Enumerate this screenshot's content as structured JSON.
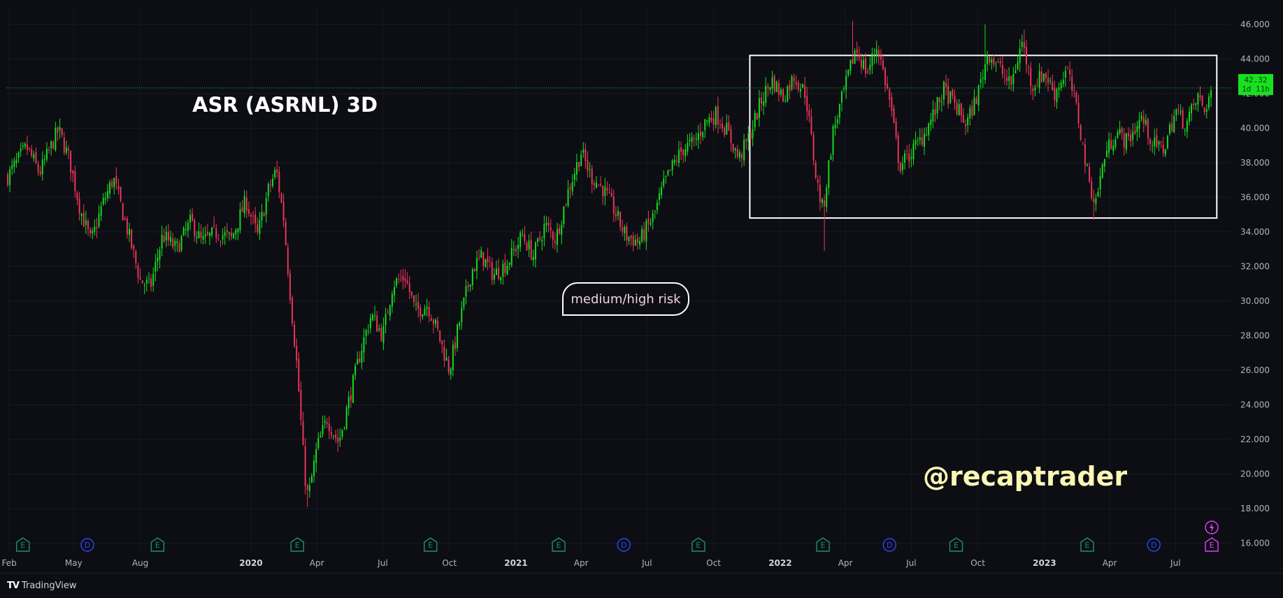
{
  "title": "ASR (ASRNL) 3D",
  "annotations": {
    "risk_label": "medium/high risk",
    "watermark": "@recaptrader"
  },
  "price_badge": {
    "price": "42.32",
    "countdown": "1d 11h"
  },
  "footer": {
    "brand": "TradingView"
  },
  "colors": {
    "up": "#16e11f",
    "down": "#f23659",
    "background": "#0c0e14",
    "box": "#ffffff",
    "price_line": "#1fc43a"
  },
  "chart_data": {
    "type": "candlestick",
    "y_axis": {
      "range": [
        15.5,
        47.0
      ],
      "ticks": [
        "16.000",
        "18.000",
        "20.000",
        "22.000",
        "24.000",
        "26.000",
        "28.000",
        "30.000",
        "32.000",
        "34.000",
        "36.000",
        "38.000",
        "40.000",
        "42.000",
        "44.000",
        "46.000"
      ],
      "position": "right"
    },
    "x_axis": {
      "range": [
        "2019-01-29",
        "2023-09-15"
      ],
      "ticks": [
        {
          "label": "Feb",
          "date": "2019-02-01",
          "year": false
        },
        {
          "label": "May",
          "date": "2019-05-01",
          "year": false
        },
        {
          "label": "Aug",
          "date": "2019-08-01",
          "year": false
        },
        {
          "label": "2020",
          "date": "2020-01-01",
          "year": true
        },
        {
          "label": "Apr",
          "date": "2020-04-01",
          "year": false
        },
        {
          "label": "Jul",
          "date": "2020-07-01",
          "year": false
        },
        {
          "label": "Oct",
          "date": "2020-10-01",
          "year": false
        },
        {
          "label": "2021",
          "date": "2021-01-01",
          "year": true
        },
        {
          "label": "Apr",
          "date": "2021-04-01",
          "year": false
        },
        {
          "label": "Jul",
          "date": "2021-07-01",
          "year": false
        },
        {
          "label": "Oct",
          "date": "2021-10-01",
          "year": false
        },
        {
          "label": "2022",
          "date": "2022-01-01",
          "year": true
        },
        {
          "label": "Apr",
          "date": "2022-04-01",
          "year": false
        },
        {
          "label": "Jul",
          "date": "2022-07-01",
          "year": false
        },
        {
          "label": "Oct",
          "date": "2022-10-01",
          "year": false
        },
        {
          "label": "2023",
          "date": "2023-01-01",
          "year": true
        },
        {
          "label": "Apr",
          "date": "2023-04-01",
          "year": false
        },
        {
          "label": "Jul",
          "date": "2023-07-01",
          "year": false
        }
      ]
    },
    "grid": true,
    "last_price": 42.32,
    "range_box": {
      "date_start": "2021-11-20",
      "date_end": "2023-08-27",
      "low": 34.8,
      "high": 44.2
    },
    "price_path": [
      [
        "2019-01-30",
        37.2
      ],
      [
        "2019-02-25",
        38.9
      ],
      [
        "2019-03-15",
        37.4
      ],
      [
        "2019-04-10",
        39.9
      ],
      [
        "2019-04-25",
        38.2
      ],
      [
        "2019-05-10",
        35.3
      ],
      [
        "2019-05-25",
        33.4
      ],
      [
        "2019-06-10",
        35.6
      ],
      [
        "2019-06-25",
        37.1
      ],
      [
        "2019-07-15",
        34.0
      ],
      [
        "2019-08-01",
        31.2
      ],
      [
        "2019-08-15",
        30.8
      ],
      [
        "2019-09-01",
        33.8
      ],
      [
        "2019-09-20",
        33.0
      ],
      [
        "2019-10-10",
        34.6
      ],
      [
        "2019-10-25",
        33.4
      ],
      [
        "2019-11-15",
        34.0
      ],
      [
        "2019-12-05",
        33.6
      ],
      [
        "2019-12-25",
        35.8
      ],
      [
        "2020-01-10",
        33.8
      ],
      [
        "2020-01-25",
        36.4
      ],
      [
        "2020-02-05",
        37.6
      ],
      [
        "2020-02-15",
        34.8
      ],
      [
        "2020-02-25",
        30.0
      ],
      [
        "2020-03-05",
        26.0
      ],
      [
        "2020-03-15",
        20.0
      ],
      [
        "2020-03-20",
        18.6
      ],
      [
        "2020-04-01",
        21.5
      ],
      [
        "2020-04-15",
        23.2
      ],
      [
        "2020-05-01",
        21.8
      ],
      [
        "2020-05-15",
        24.2
      ],
      [
        "2020-06-01",
        27.2
      ],
      [
        "2020-06-15",
        29.2
      ],
      [
        "2020-07-01",
        28.0
      ],
      [
        "2020-07-15",
        31.0
      ],
      [
        "2020-08-01",
        31.4
      ],
      [
        "2020-08-15",
        29.4
      ],
      [
        "2020-09-01",
        29.8
      ],
      [
        "2020-09-15",
        28.2
      ],
      [
        "2020-10-01",
        26.0
      ],
      [
        "2020-10-15",
        28.8
      ],
      [
        "2020-11-01",
        31.8
      ],
      [
        "2020-11-15",
        32.6
      ],
      [
        "2020-12-01",
        31.5
      ],
      [
        "2020-12-20",
        32.2
      ],
      [
        "2021-01-10",
        33.8
      ],
      [
        "2021-01-25",
        32.6
      ],
      [
        "2021-02-10",
        34.4
      ],
      [
        "2021-02-25",
        33.6
      ],
      [
        "2021-03-15",
        36.5
      ],
      [
        "2021-04-01",
        38.6
      ],
      [
        "2021-04-15",
        37.2
      ],
      [
        "2021-05-01",
        36.5
      ],
      [
        "2021-05-15",
        35.4
      ],
      [
        "2021-06-01",
        33.8
      ],
      [
        "2021-06-20",
        33.4
      ],
      [
        "2021-07-10",
        34.9
      ],
      [
        "2021-07-25",
        36.8
      ],
      [
        "2021-08-10",
        38.2
      ],
      [
        "2021-08-20",
        38.8
      ],
      [
        "2021-09-05",
        39.2
      ],
      [
        "2021-09-20",
        40.4
      ],
      [
        "2021-10-05",
        40.8
      ],
      [
        "2021-10-20",
        39.8
      ],
      [
        "2021-11-05",
        38.2
      ],
      [
        "2021-11-20",
        39.6
      ],
      [
        "2021-12-05",
        41.5
      ],
      [
        "2021-12-20",
        42.8
      ],
      [
        "2022-01-05",
        41.8
      ],
      [
        "2022-01-20",
        43.0
      ],
      [
        "2022-02-05",
        42.0
      ],
      [
        "2022-02-20",
        37.0
      ],
      [
        "2022-03-01",
        35.2
      ],
      [
        "2022-03-15",
        39.8
      ],
      [
        "2022-04-01",
        42.4
      ],
      [
        "2022-04-15",
        44.6
      ],
      [
        "2022-05-01",
        43.2
      ],
      [
        "2022-05-15",
        44.8
      ],
      [
        "2022-06-01",
        41.6
      ],
      [
        "2022-06-15",
        37.8
      ],
      [
        "2022-07-01",
        38.6
      ],
      [
        "2022-07-15",
        39.4
      ],
      [
        "2022-08-01",
        40.8
      ],
      [
        "2022-08-15",
        42.2
      ],
      [
        "2022-09-01",
        41.2
      ],
      [
        "2022-09-15",
        40.2
      ],
      [
        "2022-10-01",
        42.0
      ],
      [
        "2022-10-15",
        44.4
      ],
      [
        "2022-11-01",
        43.4
      ],
      [
        "2022-11-15",
        42.4
      ],
      [
        "2022-12-01",
        45.0
      ],
      [
        "2022-12-15",
        42.4
      ],
      [
        "2023-01-01",
        43.2
      ],
      [
        "2023-01-15",
        42.0
      ],
      [
        "2023-02-01",
        43.4
      ],
      [
        "2023-02-15",
        41.0
      ],
      [
        "2023-03-01",
        37.4
      ],
      [
        "2023-03-12",
        35.6
      ],
      [
        "2023-03-25",
        38.4
      ],
      [
        "2023-04-10",
        39.8
      ],
      [
        "2023-04-25",
        39.2
      ],
      [
        "2023-05-15",
        40.6
      ],
      [
        "2023-06-01",
        39.0
      ],
      [
        "2023-06-15",
        38.8
      ],
      [
        "2023-07-01",
        41.0
      ],
      [
        "2023-07-15",
        40.2
      ],
      [
        "2023-08-01",
        41.8
      ],
      [
        "2023-08-10",
        41.0
      ],
      [
        "2023-08-20",
        42.3
      ]
    ],
    "extremes": [
      {
        "date": "2020-03-20",
        "low": 18.1
      },
      {
        "date": "2022-03-03",
        "low": 32.9
      },
      {
        "date": "2022-04-12",
        "high": 46.2
      },
      {
        "date": "2022-10-10",
        "high": 46.0
      },
      {
        "date": "2022-12-05",
        "high": 45.7
      },
      {
        "date": "2023-03-10",
        "low": 34.7
      }
    ],
    "event_markers": [
      {
        "type": "E",
        "date": "2019-02-20"
      },
      {
        "type": "D",
        "date": "2019-05-20"
      },
      {
        "type": "E",
        "date": "2019-08-25"
      },
      {
        "type": "E",
        "date": "2020-03-05"
      },
      {
        "type": "E",
        "date": "2020-09-05"
      },
      {
        "type": "E",
        "date": "2021-03-01"
      },
      {
        "type": "D",
        "date": "2021-05-30"
      },
      {
        "type": "E",
        "date": "2021-09-10"
      },
      {
        "type": "E",
        "date": "2022-03-01"
      },
      {
        "type": "D",
        "date": "2022-06-01"
      },
      {
        "type": "E",
        "date": "2022-09-01"
      },
      {
        "type": "E",
        "date": "2023-03-01"
      },
      {
        "type": "D",
        "date": "2023-06-01"
      },
      {
        "type": "E",
        "date": "2023-08-20",
        "upcoming": true
      }
    ]
  }
}
